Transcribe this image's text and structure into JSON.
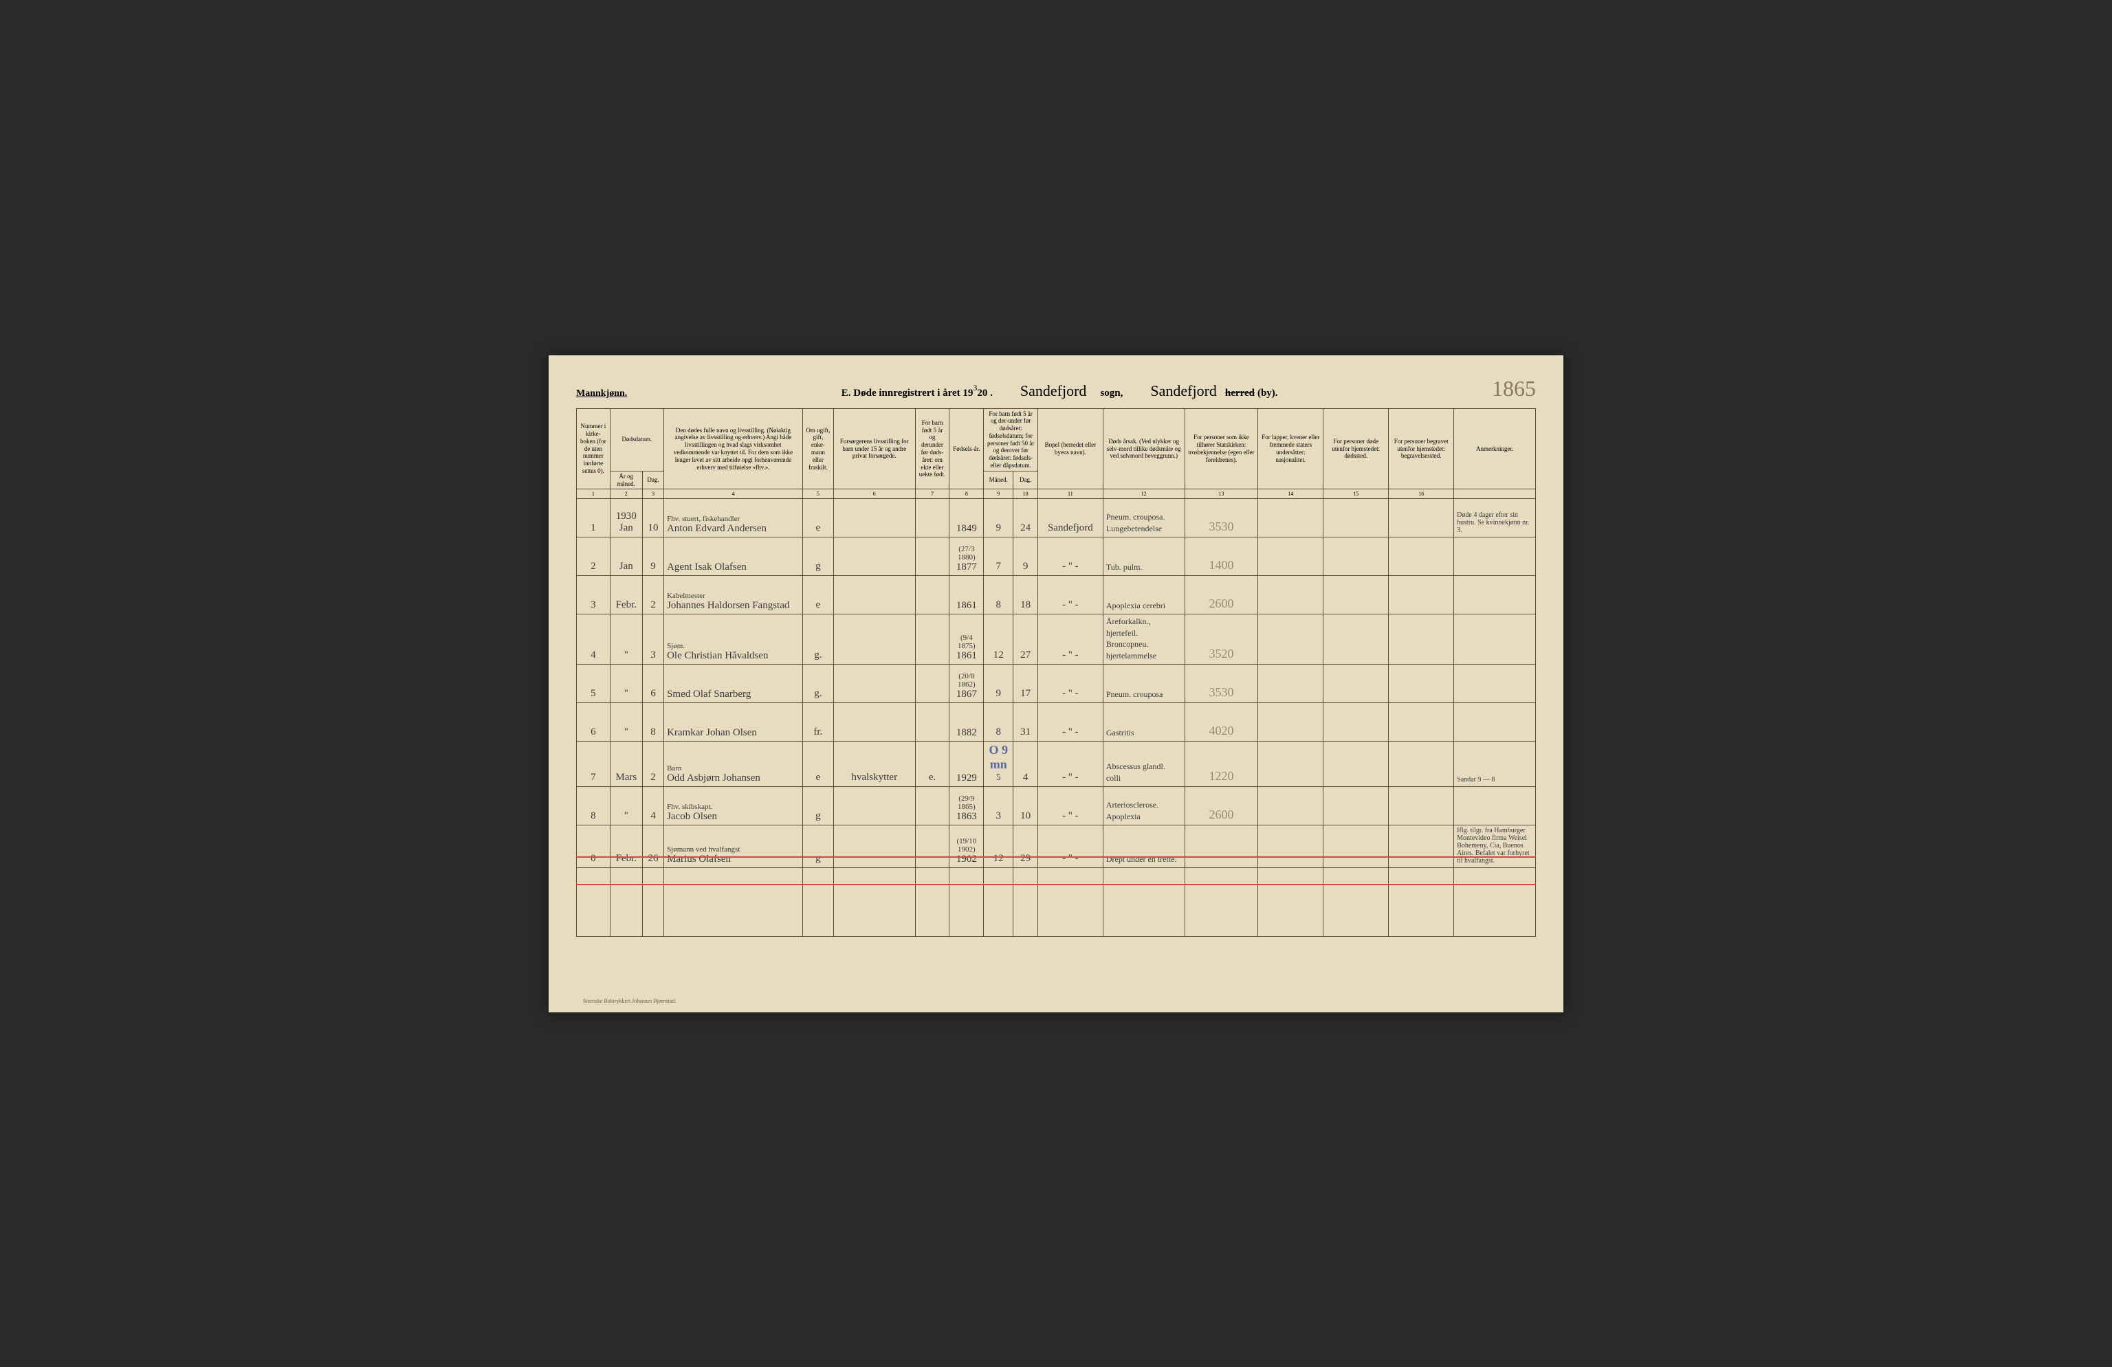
{
  "header": {
    "mannkjonn": "Mannkjønn.",
    "title_prefix": "E.  Døde innregistrert i året 19",
    "year_overwrite": "3",
    "year_base": "20 .",
    "sogn_name": "Sandefjord",
    "sogn_label": "sogn,",
    "herred_name": "Sandefjord",
    "herred_strike": "herred",
    "herred_suffix": "(by).",
    "page_number": "1865"
  },
  "columns": {
    "c1": "Nummer i kirke-boken (for de uten nummer innførte settes 0).",
    "c2a": "Dødsdatum.",
    "c2b_ar": "År og måned.",
    "c2b_dag": "Dag.",
    "c4": "Den dødes fulle navn og livsstilling. (Nøiaktig angivelse av livsstilling og erhverv.) Angi både livsstillingen og hvad slags virksomhet vedkommende var knyttet til. For dem som ikke lenger levet av sitt arbeide opgi forhenværende erhverv med tilføielse «fhv.».",
    "c5": "Om ugift, gift, enke-mann eller fraskilt.",
    "c6": "Forsørgerens livsstilling for barn under 15 år og andre privat forsørgede.",
    "c7": "For barn født 5 år og derunder før døds-året: om ekte eller uekte født.",
    "c8": "Fødsels-år.",
    "c9_10": "For barn født 5 år og der-under før dødsåret: fødselsdatum; for personer født 50 år og derover før dødsåret: fødsels- eller dåpsdatum.",
    "c9": "Måned.",
    "c10": "Dag.",
    "c11": "Bopel (herredet eller byens navn).",
    "c12": "Døds årsak. (Ved ulykker og selv-mord tillike dødsmåte og ved selvmord beveggrunn.)",
    "c13": "For personer som ikke tilhører Statskirken: trosbekjennelse (egen eller foreldrenes).",
    "c14": "For lapper, kvener eller fremmede staters undersåtter: nasjonalitet.",
    "c15": "For personer døde utenfor hjemstedet: dødssted.",
    "c16": "For personer begravet utenfor hjemstedet: begravelsessted.",
    "c17": "Anmerkninger."
  },
  "colnums": [
    "1",
    "2",
    "3",
    "4",
    "5",
    "6",
    "7",
    "8",
    "9",
    "10",
    "11",
    "12",
    "13",
    "14",
    "15",
    "16",
    ""
  ],
  "rows": [
    {
      "n": "1",
      "ym": "1930 Jan",
      "d": "10",
      "name_top": "Fhv. stuert, fiskehandler",
      "name": "Anton Edvard Andersen",
      "civ": "e",
      "prov": "",
      "leg": "",
      "yr": "1849",
      "m": "9",
      "day": "24",
      "bopel": "Sandefjord",
      "cause": "Pneum. crouposa. Lungebetendelse",
      "code": "3530",
      "c14": "",
      "c15": "",
      "c16": "",
      "rem": "Døde 4 dager efter sin hustru. Se kvinnekjønn nr. 3."
    },
    {
      "n": "2",
      "ym": "Jan",
      "d": "9",
      "name_top": "",
      "name": "Agent Isak Olafsen",
      "civ": "g",
      "prov": "",
      "leg": "",
      "yr_top": "(27/3 1880)",
      "yr": "1877",
      "m": "7",
      "day": "9",
      "bopel": "-  \"  -",
      "cause": "Tub. pulm.",
      "code": "1400",
      "c14": "",
      "c15": "",
      "c16": "",
      "rem": ""
    },
    {
      "n": "3",
      "ym": "Febr.",
      "d": "2",
      "name_top": "Kabelmester",
      "name": "Johannes Haldorsen Fangstad",
      "civ": "e",
      "prov": "",
      "leg": "",
      "yr": "1861",
      "m": "8",
      "day": "18",
      "bopel": "-  \"  -",
      "cause": "Apoplexia cerebri",
      "code": "2600",
      "c14": "",
      "c15": "",
      "c16": "",
      "rem": ""
    },
    {
      "n": "4",
      "ym": "\"",
      "d": "3",
      "name_top": "Sjøm.",
      "name": "Ole Christian Håvaldsen",
      "civ": "g.",
      "prov": "",
      "leg": "",
      "yr_top": "(9/4 1875)",
      "yr": "1861",
      "m": "12",
      "day": "27",
      "bopel": "-  \"  -",
      "cause": "Åreforkalkn., hjertefeil. Broncopneu. hjertelammelse",
      "code": "3520",
      "c14": "",
      "c15": "",
      "c16": "",
      "rem": ""
    },
    {
      "n": "5",
      "ym": "\"",
      "d": "6",
      "name_top": "",
      "name": "Smed Olaf Snarberg",
      "civ": "g.",
      "prov": "",
      "leg": "",
      "yr_top": "(20/8 1862)",
      "yr": "1867",
      "m": "9",
      "day": "17",
      "bopel": "-  \"  -",
      "cause": "Pneum. crouposa",
      "code": "3530",
      "c14": "",
      "c15": "",
      "c16": "",
      "rem": ""
    },
    {
      "n": "6",
      "ym": "\"",
      "d": "8",
      "name_top": "",
      "name": "Kramkar Johan Olsen",
      "civ": "fr.",
      "prov": "",
      "leg": "",
      "yr": "1882",
      "m": "8",
      "day": "31",
      "bopel": "-  \"  -",
      "cause": "Gastritis",
      "code": "4020",
      "c14": "",
      "c15": "",
      "c16": "",
      "rem": ""
    },
    {
      "n": "7",
      "ym": "Mars",
      "d": "2",
      "name_top": "Barn",
      "name": "Odd Asbjørn Johansen",
      "civ": "e",
      "prov": "hvalskytter",
      "leg": "e.",
      "yr": "1929",
      "m": "5",
      "day": "4",
      "blue": "O 9 mn",
      "bopel": "-  \"  -",
      "cause": "Abscessus glandl. colli",
      "code": "1220",
      "c14": "",
      "c15": "",
      "c16": "",
      "rem": "Sandar   9 — 8"
    },
    {
      "n": "8",
      "ym": "\"",
      "d": "4",
      "name_top": "Fhv. skibskapt.",
      "name": "Jacob Olsen",
      "civ": "g",
      "prov": "",
      "leg": "",
      "yr_top": "(29/9 1865)",
      "yr": "1863",
      "m": "3",
      "day": "10",
      "bopel": "-  \"  -",
      "cause": "Arteriosclerose. Apoplexia",
      "code": "2600",
      "c14": "",
      "c15": "",
      "c16": "",
      "rem": ""
    },
    {
      "n": "0",
      "ym": "Febr.",
      "d": "26",
      "name_top": "Sjømann ved hvalfangst",
      "name": "Marius Olafsen",
      "civ": "g",
      "prov": "",
      "leg": "",
      "yr_top": "(19/10 1902)",
      "yr": "1902",
      "m": "12",
      "day": "29",
      "bopel": "-  \"  -",
      "cause": "Drept under en trette.",
      "code": "",
      "c14": "",
      "c15": "",
      "c16": "",
      "rem": "Iflg. tilgr. fra Hamburger Montevideo firma Weisel Bohemeny, Cia, Buenos Aires. Befalet var forhyret til hvalfangst."
    }
  ],
  "footer": "Steenske Boktrykkeri Johannes Bjørnstad."
}
